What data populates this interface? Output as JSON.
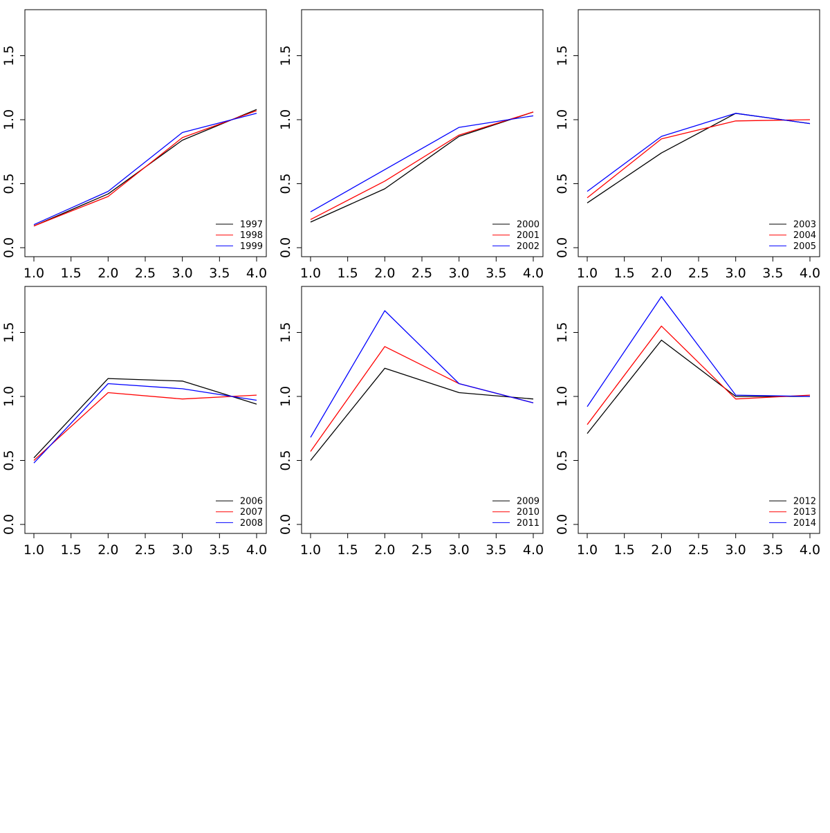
{
  "colors": {
    "series": [
      "#000000",
      "#ff0000",
      "#0000ff"
    ],
    "axis": "#000000",
    "background": "#ffffff"
  },
  "chart_data": [
    {
      "type": "line",
      "x": [
        1,
        2,
        3,
        4
      ],
      "xlim": [
        1,
        4
      ],
      "ylim": [
        0,
        1.85
      ],
      "xticks": [
        "1.0",
        "1.5",
        "2.0",
        "2.5",
        "3.0",
        "3.5",
        "4.0"
      ],
      "yticks": [
        "0.0",
        "0.5",
        "1.0",
        "1.5"
      ],
      "legend_position": "bottom-right",
      "grid": false,
      "series": [
        {
          "name": "1997",
          "values": [
            0.17,
            0.42,
            0.84,
            1.08
          ]
        },
        {
          "name": "1998",
          "values": [
            0.17,
            0.4,
            0.86,
            1.07
          ]
        },
        {
          "name": "1999",
          "values": [
            0.18,
            0.44,
            0.9,
            1.05
          ]
        }
      ]
    },
    {
      "type": "line",
      "x": [
        1,
        2,
        3,
        4
      ],
      "xlim": [
        1,
        4
      ],
      "ylim": [
        0,
        1.85
      ],
      "xticks": [
        "1.0",
        "1.5",
        "2.0",
        "2.5",
        "3.0",
        "3.5",
        "4.0"
      ],
      "yticks": [
        "0.0",
        "0.5",
        "1.0",
        "1.5"
      ],
      "legend_position": "bottom-right",
      "grid": false,
      "series": [
        {
          "name": "2000",
          "values": [
            0.2,
            0.46,
            0.87,
            1.06
          ]
        },
        {
          "name": "2001",
          "values": [
            0.22,
            0.52,
            0.88,
            1.06
          ]
        },
        {
          "name": "2002",
          "values": [
            0.28,
            0.61,
            0.94,
            1.03
          ]
        }
      ]
    },
    {
      "type": "line",
      "x": [
        1,
        2,
        3,
        4
      ],
      "xlim": [
        1,
        4
      ],
      "ylim": [
        0,
        1.85
      ],
      "xticks": [
        "1.0",
        "1.5",
        "2.0",
        "2.5",
        "3.0",
        "3.5",
        "4.0"
      ],
      "yticks": [
        "0.0",
        "0.5",
        "1.0",
        "1.5"
      ],
      "legend_position": "bottom-right",
      "grid": false,
      "series": [
        {
          "name": "2003",
          "values": [
            0.35,
            0.74,
            1.05,
            0.97
          ]
        },
        {
          "name": "2004",
          "values": [
            0.39,
            0.85,
            0.99,
            1.0
          ]
        },
        {
          "name": "2005",
          "values": [
            0.44,
            0.87,
            1.05,
            0.97
          ]
        }
      ]
    },
    {
      "type": "line",
      "x": [
        1,
        2,
        3,
        4
      ],
      "xlim": [
        1,
        4
      ],
      "ylim": [
        0,
        1.85
      ],
      "xticks": [
        "1.0",
        "1.5",
        "2.0",
        "2.5",
        "3.0",
        "3.5",
        "4.0"
      ],
      "yticks": [
        "0.0",
        "0.5",
        "1.0",
        "1.5"
      ],
      "legend_position": "bottom-right",
      "grid": false,
      "series": [
        {
          "name": "2006",
          "values": [
            0.52,
            1.14,
            1.12,
            0.94
          ]
        },
        {
          "name": "2007",
          "values": [
            0.5,
            1.03,
            0.98,
            1.01
          ]
        },
        {
          "name": "2008",
          "values": [
            0.48,
            1.1,
            1.06,
            0.97
          ]
        }
      ]
    },
    {
      "type": "line",
      "x": [
        1,
        2,
        3,
        4
      ],
      "xlim": [
        1,
        4
      ],
      "ylim": [
        0,
        1.85
      ],
      "xticks": [
        "1.0",
        "1.5",
        "2.0",
        "2.5",
        "3.0",
        "3.5",
        "4.0"
      ],
      "yticks": [
        "0.0",
        "0.5",
        "1.0",
        "1.5"
      ],
      "legend_position": "bottom-right",
      "grid": false,
      "series": [
        {
          "name": "2009",
          "values": [
            0.5,
            1.22,
            1.03,
            0.98
          ]
        },
        {
          "name": "2010",
          "values": [
            0.57,
            1.39,
            1.1,
            0.95
          ]
        },
        {
          "name": "2011",
          "values": [
            0.68,
            1.67,
            1.1,
            0.95
          ]
        }
      ]
    },
    {
      "type": "line",
      "x": [
        1,
        2,
        3,
        4
      ],
      "xlim": [
        1,
        4
      ],
      "ylim": [
        0,
        1.85
      ],
      "xticks": [
        "1.0",
        "1.5",
        "2.0",
        "2.5",
        "3.0",
        "3.5",
        "4.0"
      ],
      "yticks": [
        "0.0",
        "0.5",
        "1.0",
        "1.5"
      ],
      "legend_position": "bottom-right",
      "grid": false,
      "series": [
        {
          "name": "2012",
          "values": [
            0.71,
            1.44,
            1.0,
            1.0
          ]
        },
        {
          "name": "2013",
          "values": [
            0.78,
            1.55,
            0.98,
            1.01
          ]
        },
        {
          "name": "2014",
          "values": [
            0.92,
            1.78,
            1.01,
            1.0
          ]
        }
      ]
    }
  ]
}
